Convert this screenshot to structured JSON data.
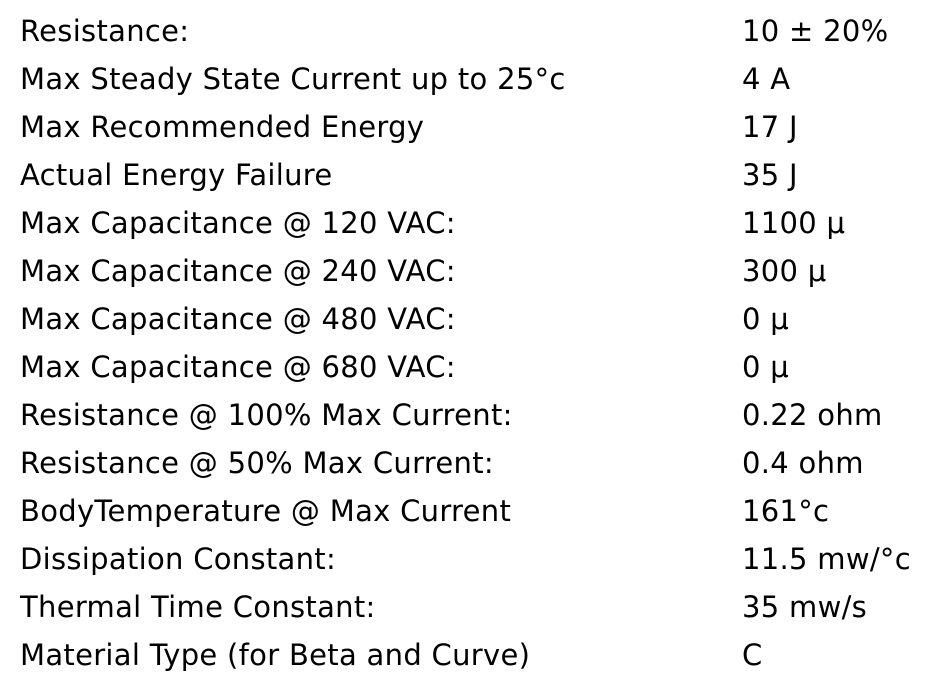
{
  "specs": [
    {
      "label": "Resistance:",
      "value": "10 ± 20%"
    },
    {
      "label": "Max Steady State Current up to 25°c",
      "value": "4 A"
    },
    {
      "label": "Max Recommended Energy",
      "value": "17 J"
    },
    {
      "label": "Actual Energy Failure",
      "value": "35 J"
    },
    {
      "label": "Max Capacitance @ 120 VAC:",
      "value": "1100 μ"
    },
    {
      "label": "Max Capacitance @ 240 VAC:",
      "value": "300 μ"
    },
    {
      "label": "Max Capacitance @ 480 VAC:",
      "value": "0 μ"
    },
    {
      "label": "Max Capacitance @ 680 VAC:",
      "value": "0 μ"
    },
    {
      "label": "Resistance @ 100% Max Current:",
      "value": "0.22 ohm"
    },
    {
      "label": "Resistance @ 50% Max Current:",
      "value": "0.4 ohm"
    },
    {
      "label": "BodyTemperature @ Max Current",
      "value": "161°c"
    },
    {
      "label": "Dissipation Constant:",
      "value": "11.5 mw/°c"
    },
    {
      "label": "Thermal Time Constant:",
      "value": "35 mw/s"
    },
    {
      "label": "Material Type (for Beta and Curve)",
      "value": "C"
    }
  ]
}
